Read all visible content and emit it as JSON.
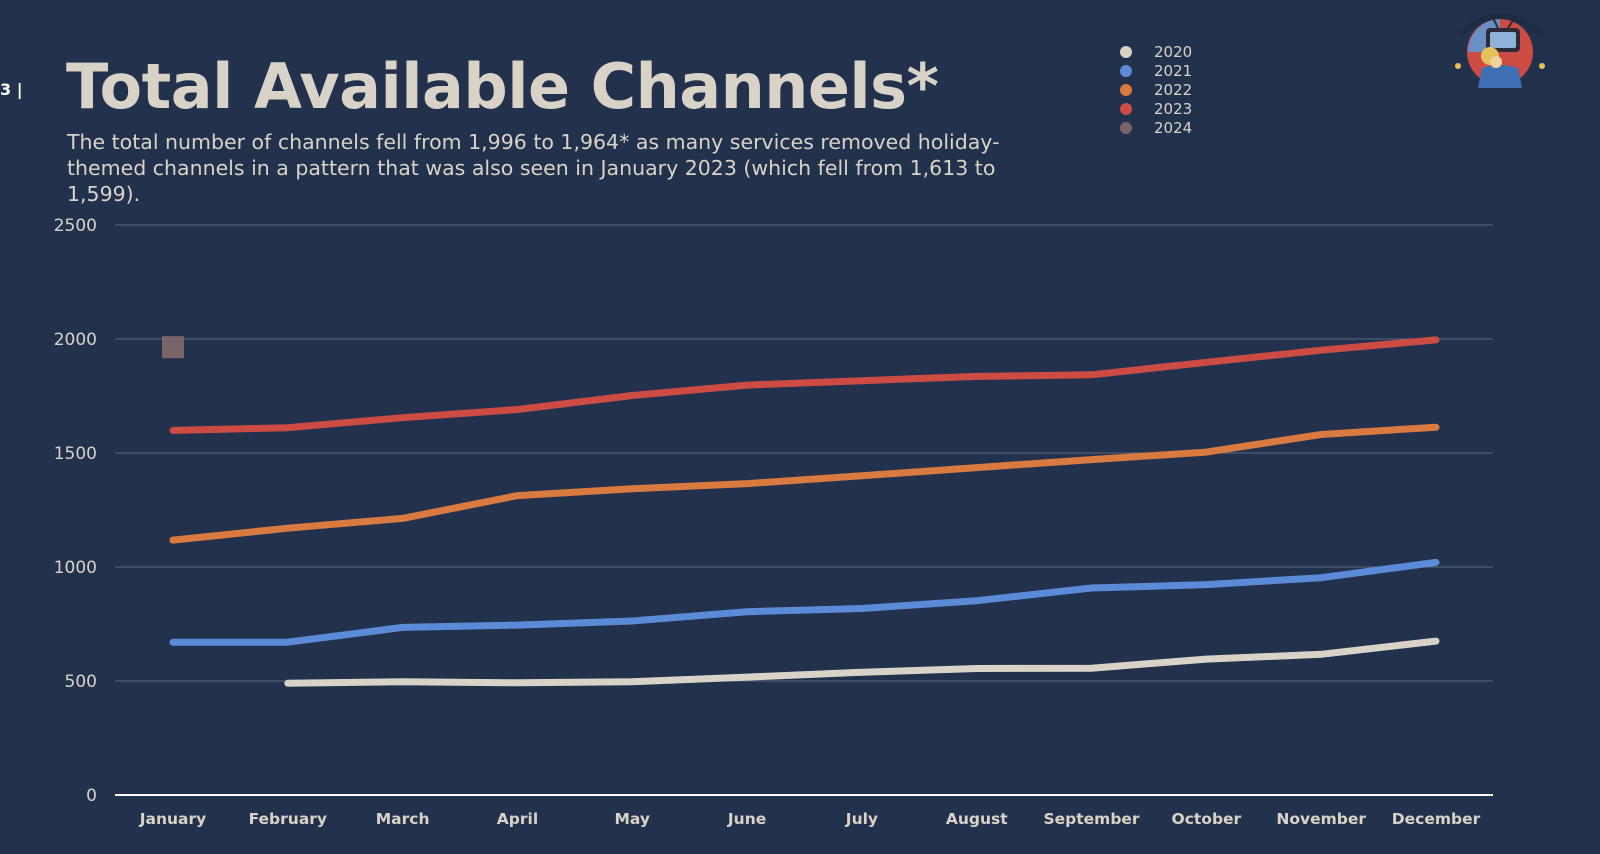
{
  "page_marker": "3 |",
  "title": "Total Available Channels*",
  "subtitle": "The total number of channels fell from 1,996 to 1,964* as many services removed holiday-themed channels in a pattern that was also seen in January 2023 (which fell from 1,613 to 1,599).",
  "logo": {
    "icon": "tv-character-logo"
  },
  "chart_data": {
    "type": "line",
    "title": "Total Available Channels*",
    "subtitle": "The total number of channels fell from 1,996 to 1,964* as many services removed holiday-themed channels in a pattern that was also seen in January 2023 (which fell from 1,613 to 1,599).",
    "xlabel": "",
    "ylabel": "",
    "categories": [
      "January",
      "February",
      "March",
      "April",
      "May",
      "June",
      "July",
      "August",
      "September",
      "October",
      "November",
      "December"
    ],
    "ylim": [
      0,
      2500
    ],
    "y_ticks": [
      0,
      500,
      1000,
      1500,
      2000,
      2500
    ],
    "grid": true,
    "legend_position": "top-right",
    "series": [
      {
        "name": "2020",
        "color": "#d9d3c7",
        "values": [
          null,
          490,
          497,
          492,
          497,
          517,
          538,
          555,
          556,
          596,
          617,
          675
        ]
      },
      {
        "name": "2021",
        "color": "#5b8bd6",
        "values": [
          670,
          670,
          735,
          745,
          763,
          804,
          818,
          852,
          908,
          923,
          953,
          1020
        ]
      },
      {
        "name": "2022",
        "color": "#d97b3e",
        "values": [
          1118,
          1170,
          1213,
          1313,
          1343,
          1366,
          1400,
          1436,
          1471,
          1504,
          1581,
          1613
        ]
      },
      {
        "name": "2023",
        "color": "#cc4c43",
        "values": [
          1599,
          1611,
          1655,
          1691,
          1752,
          1798,
          1817,
          1836,
          1843,
          1898,
          1951,
          1996
        ]
      },
      {
        "name": "2024",
        "color": "#7a6468",
        "values": [
          1964,
          null,
          null,
          null,
          null,
          null,
          null,
          null,
          null,
          null,
          null,
          null
        ],
        "marker": "square"
      }
    ]
  }
}
